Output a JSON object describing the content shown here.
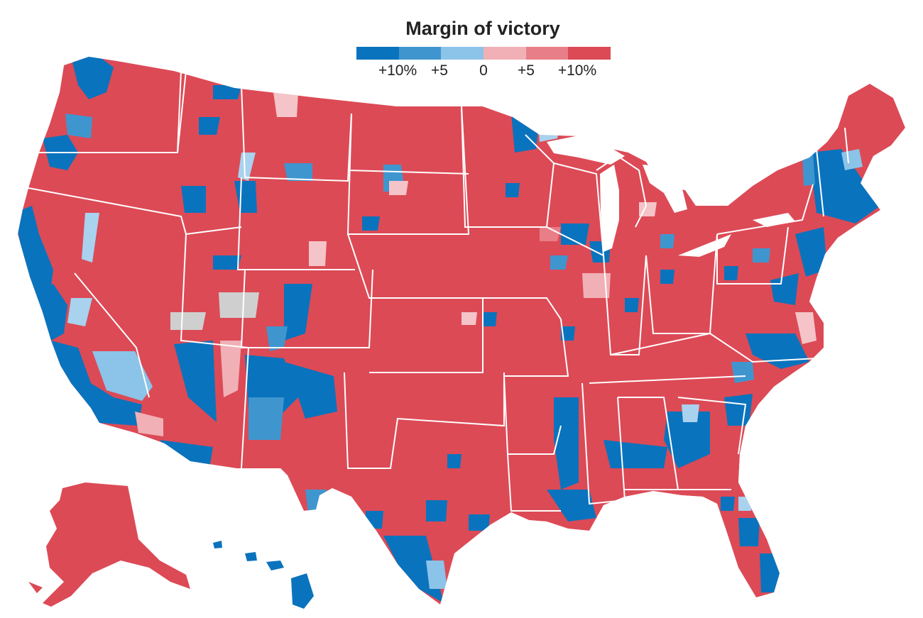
{
  "legend": {
    "title": "Margin of victory",
    "colors": [
      "#0a73bd",
      "#3f96cf",
      "#8cc3e8",
      "#f0b0b6",
      "#e77e88",
      "#dc4a56"
    ],
    "labels": [
      "+10%",
      "+5",
      "0",
      "+5",
      "+10%"
    ]
  },
  "map_colors": {
    "strong_rep": "#dc4a56",
    "lean_rep": "#e77e88",
    "slight_rep": "#f4c4c8",
    "strong_dem": "#0a73bd",
    "lean_dem": "#3f96cf",
    "slight_dem": "#a9d2ee",
    "no_data": "#cfcfcf",
    "boundary": "#ffffff"
  },
  "regions": [
    "contiguous-us",
    "alaska",
    "hawaii"
  ]
}
